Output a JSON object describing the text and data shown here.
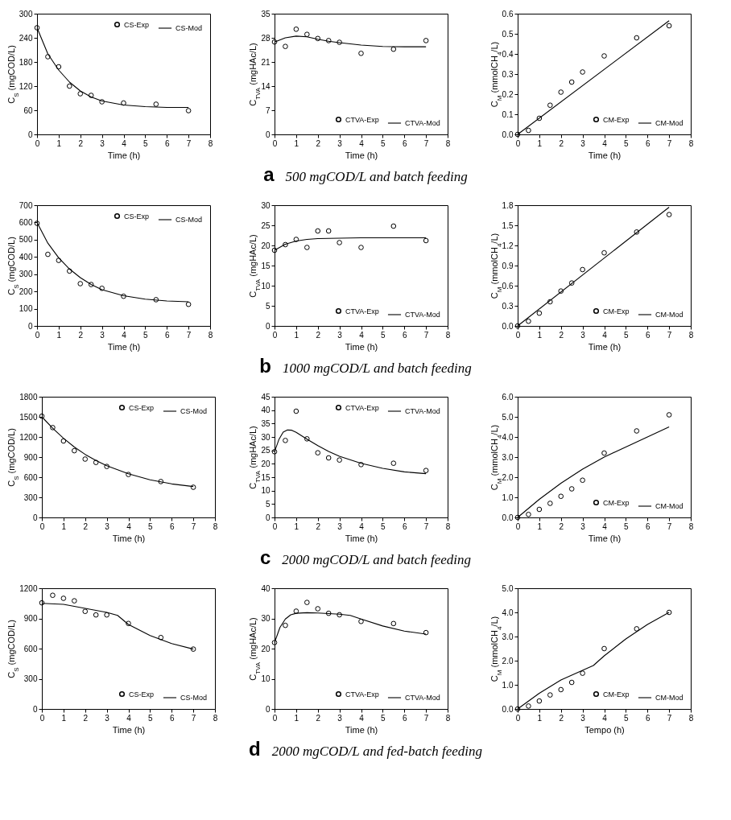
{
  "chart_data": [
    {
      "type": "line",
      "xlabel": "Time (h)",
      "ylabel": "C$_{S}$ (mgCOD/L)",
      "xlim": [
        0,
        8
      ],
      "xticks": [
        0,
        1,
        2,
        3,
        4,
        5,
        6,
        7,
        8
      ],
      "ylim": [
        0,
        300
      ],
      "yticks": [
        0,
        60,
        120,
        180,
        240,
        300
      ],
      "legend": "top right",
      "series": [
        {
          "name": "CS-Exp",
          "type": "scatter",
          "marker": "circle",
          "color": "#000000",
          "x": [
            0,
            0.5,
            1,
            1.5,
            2,
            2.5,
            3,
            4,
            5.5,
            7
          ],
          "values": [
            265,
            193,
            168,
            120,
            101,
            97,
            81,
            78,
            75,
            59
          ]
        },
        {
          "name": "CS-Mod",
          "type": "line",
          "line_style": "solid",
          "color": "#000000",
          "x": [
            0,
            0.5,
            1,
            1.5,
            2,
            2.5,
            3,
            4,
            5,
            6,
            7
          ],
          "values": [
            265,
            200,
            160,
            130,
            108,
            93,
            83,
            73,
            69,
            67,
            67
          ]
        }
      ]
    },
    {
      "type": "line",
      "xlabel": "Time (h)",
      "ylabel": "C$_{TVA}$ (mgHAc/L)",
      "xlim": [
        0,
        8
      ],
      "xticks": [
        0,
        1,
        2,
        3,
        4,
        5,
        6,
        7,
        8
      ],
      "ylim": [
        0,
        35
      ],
      "yticks": [
        0,
        7,
        14,
        21,
        28,
        35
      ],
      "legend": "bottom right",
      "annotations": [
        "a",
        "500 mgCOD/L and batch feeding"
      ],
      "series": [
        {
          "name": "CTVA-Exp",
          "type": "scatter",
          "marker": "circle",
          "color": "#000000",
          "x": [
            0,
            0.5,
            1,
            1.5,
            2,
            2.5,
            3,
            4,
            5.5,
            7
          ],
          "values": [
            26.8,
            25.5,
            30.5,
            29,
            27.8,
            27.2,
            26.7,
            23.5,
            24.7,
            27.2
          ]
        },
        {
          "name": "CTVA-Mod",
          "type": "line",
          "line_style": "solid",
          "color": "#000000",
          "x": [
            0,
            0.5,
            1,
            1.5,
            2,
            2.5,
            3,
            4,
            5,
            6,
            7
          ],
          "values": [
            26.8,
            28,
            28.5,
            28.3,
            27.6,
            27,
            26.6,
            25.9,
            25.5,
            25.4,
            25.4
          ]
        }
      ]
    },
    {
      "type": "line",
      "xlabel": "Time (h)",
      "ylabel": "C$_{M}$ (mmolCH$_{4}$/L)",
      "xlim": [
        0,
        8
      ],
      "xticks": [
        0,
        1,
        2,
        3,
        4,
        5,
        6,
        7,
        8
      ],
      "ylim": [
        0,
        0.6
      ],
      "yticks": [
        {
          "value": 0,
          "label": "0.0"
        },
        0.1,
        0.2,
        0.3,
        0.4,
        0.5,
        0.6
      ],
      "legend": "bottom right",
      "series": [
        {
          "name": "CM-Exp",
          "type": "scatter",
          "marker": "circle",
          "color": "#000000",
          "x": [
            0,
            0.5,
            1,
            1.5,
            2,
            2.5,
            3,
            4,
            5.5,
            7
          ],
          "values": [
            0,
            0.02,
            0.08,
            0.145,
            0.21,
            0.26,
            0.31,
            0.39,
            0.48,
            0.54
          ]
        },
        {
          "name": "CM-Mod",
          "type": "line",
          "line_style": "solid",
          "color": "#000000",
          "x": [
            0,
            7
          ],
          "values": [
            0,
            0.565
          ]
        }
      ]
    },
    {
      "type": "line",
      "xlabel": "Time (h)",
      "ylabel": "C$_{S}$ (mgCOD/L)",
      "xlim": [
        0,
        8
      ],
      "xticks": [
        0,
        1,
        2,
        3,
        4,
        5,
        6,
        7,
        8
      ],
      "ylim": [
        0,
        700
      ],
      "yticks": [
        0,
        100,
        200,
        300,
        400,
        500,
        600,
        700
      ],
      "legend": "top right",
      "series": [
        {
          "name": "CS-Exp",
          "type": "scatter",
          "marker": "circle",
          "color": "#000000",
          "x": [
            0,
            0.5,
            1,
            1.5,
            2,
            2.5,
            3,
            4,
            5.5,
            7
          ],
          "values": [
            595,
            415,
            380,
            318,
            245,
            240,
            218,
            172,
            152,
            125
          ]
        },
        {
          "name": "CS-Mod",
          "type": "line",
          "line_style": "solid",
          "color": "#000000",
          "x": [
            0,
            0.5,
            1,
            1.5,
            2,
            2.5,
            3,
            4,
            5,
            6,
            7
          ],
          "values": [
            600,
            480,
            395,
            330,
            280,
            240,
            210,
            175,
            155,
            145,
            140
          ]
        }
      ]
    },
    {
      "type": "line",
      "xlabel": "Time (h)",
      "ylabel": "C$_{TVA}$ (mgHAc/L)",
      "xlim": [
        0,
        8
      ],
      "xticks": [
        0,
        1,
        2,
        3,
        4,
        5,
        6,
        7,
        8
      ],
      "ylim": [
        0,
        30
      ],
      "yticks": [
        0,
        5,
        10,
        15,
        20,
        25,
        30
      ],
      "legend": "bottom right",
      "annotations": [
        "b",
        "1000 mgCOD/L and batch feeding"
      ],
      "series": [
        {
          "name": "CTVA-Exp",
          "type": "scatter",
          "marker": "circle",
          "color": "#000000",
          "x": [
            0,
            0.5,
            1,
            1.5,
            2,
            2.5,
            3,
            4,
            5.5,
            7
          ],
          "values": [
            18.8,
            20.2,
            21.5,
            19.5,
            23.6,
            23.6,
            20.7,
            19.5,
            24.8,
            21.2
          ]
        },
        {
          "name": "CTVA-Mod",
          "type": "line",
          "line_style": "solid",
          "color": "#000000",
          "x": [
            0,
            0.5,
            1,
            1.5,
            2,
            3,
            4,
            7
          ],
          "values": [
            18.8,
            20.3,
            21.1,
            21.5,
            21.7,
            21.8,
            21.9,
            21.9
          ]
        }
      ]
    },
    {
      "type": "line",
      "xlabel": "Time (h)",
      "ylabel": "C$_{M}$ (mmolCH$_{4}$/L)",
      "xlim": [
        0,
        8
      ],
      "xticks": [
        0,
        1,
        2,
        3,
        4,
        5,
        6,
        7,
        8
      ],
      "ylim": [
        0,
        1.8
      ],
      "yticks": [
        {
          "value": 0,
          "label": "0.0"
        },
        0.3,
        0.6,
        0.9,
        1.2,
        1.5,
        1.8
      ],
      "legend": "bottom right",
      "series": [
        {
          "name": "CM-Exp",
          "type": "scatter",
          "marker": "circle",
          "color": "#000000",
          "x": [
            0,
            0.5,
            1,
            1.5,
            2,
            2.5,
            3,
            4,
            5.5,
            7
          ],
          "values": [
            0,
            0.07,
            0.19,
            0.36,
            0.52,
            0.64,
            0.84,
            1.09,
            1.4,
            1.66
          ]
        },
        {
          "name": "CM-Mod",
          "type": "line",
          "line_style": "solid",
          "color": "#000000",
          "x": [
            0,
            7
          ],
          "values": [
            0,
            1.77
          ]
        }
      ]
    },
    {
      "type": "line",
      "xlabel": "Time (h)",
      "ylabel": "C$_{S}$ (mgCOD/L)",
      "xlim": [
        0,
        8
      ],
      "xticks": [
        0,
        1,
        2,
        3,
        4,
        5,
        6,
        7,
        8
      ],
      "ylim": [
        0,
        1800
      ],
      "yticks": [
        0,
        300,
        600,
        900,
        1200,
        1500,
        1800
      ],
      "legend": "top right",
      "series": [
        {
          "name": "CS-Exp",
          "type": "scatter",
          "marker": "circle",
          "color": "#000000",
          "x": [
            0,
            0.5,
            1,
            1.5,
            2,
            2.5,
            3,
            4,
            5.5,
            7
          ],
          "values": [
            1510,
            1340,
            1140,
            995,
            870,
            820,
            760,
            640,
            535,
            450
          ]
        },
        {
          "name": "CS-Mod",
          "type": "line",
          "line_style": "solid",
          "color": "#000000",
          "x": [
            0,
            0.5,
            1,
            1.5,
            2,
            2.5,
            3,
            4,
            5,
            6,
            7
          ],
          "values": [
            1500,
            1330,
            1180,
            1050,
            940,
            850,
            770,
            650,
            560,
            500,
            460
          ]
        }
      ]
    },
    {
      "type": "line",
      "xlabel": "Time (h)",
      "ylabel": "C$_{TVA}$ (mgHAc/L)",
      "xlim": [
        0,
        8
      ],
      "xticks": [
        0,
        1,
        2,
        3,
        4,
        5,
        6,
        7,
        8
      ],
      "ylim": [
        0,
        45
      ],
      "yticks": [
        0,
        5,
        10,
        15,
        20,
        25,
        30,
        35,
        40,
        45
      ],
      "legend": "top right",
      "annotations": [
        "c",
        "2000 mgCOD/L and batch feeding"
      ],
      "series": [
        {
          "name": "CTVA-Exp",
          "type": "scatter",
          "marker": "circle",
          "color": "#000000",
          "x": [
            0,
            0.5,
            1,
            1.5,
            2,
            2.5,
            3,
            4,
            5.5,
            7
          ],
          "values": [
            24.5,
            28.7,
            39.6,
            29.3,
            24.1,
            22.2,
            21.4,
            19.7,
            20.2,
            17.5
          ]
        },
        {
          "name": "CTVA-Mod",
          "type": "line",
          "line_style": "solid",
          "color": "#000000",
          "x": [
            0,
            0.2,
            0.4,
            0.6,
            0.8,
            1,
            1.5,
            2,
            2.5,
            3,
            4,
            5,
            6,
            7
          ],
          "values": [
            24.5,
            29,
            31.8,
            32.6,
            32.5,
            31.7,
            29.2,
            26.8,
            24.6,
            22.8,
            20.2,
            18.3,
            17,
            16.3
          ]
        }
      ]
    },
    {
      "type": "line",
      "xlabel": "Time (h)",
      "ylabel": "C$_{M}$ (mmolCH$_{4}$/L)",
      "xlim": [
        0,
        8
      ],
      "xticks": [
        0,
        1,
        2,
        3,
        4,
        5,
        6,
        7,
        8
      ],
      "ylim": [
        0,
        6
      ],
      "yticks": [
        {
          "value": 0,
          "label": "0.0"
        },
        {
          "value": 1,
          "label": "1.0"
        },
        {
          "value": 2,
          "label": "2.0"
        },
        {
          "value": 3,
          "label": "3.0"
        },
        {
          "value": 4,
          "label": "4.0"
        },
        {
          "value": 5,
          "label": "5.0"
        },
        {
          "value": 6,
          "label": "6.0"
        }
      ],
      "legend": "bottom right",
      "series": [
        {
          "name": "CM-Exp",
          "type": "scatter",
          "marker": "circle",
          "color": "#000000",
          "x": [
            0,
            0.5,
            1,
            1.5,
            2,
            2.5,
            3,
            4,
            5.5,
            7
          ],
          "values": [
            0,
            0.15,
            0.4,
            0.7,
            1.05,
            1.42,
            1.85,
            3.2,
            4.3,
            5.1
          ]
        },
        {
          "name": "CM-Mod",
          "type": "line",
          "line_style": "solid",
          "color": "#000000",
          "x": [
            0,
            1,
            2,
            3,
            4,
            5,
            6,
            7
          ],
          "values": [
            0,
            0.9,
            1.7,
            2.4,
            3.0,
            3.5,
            4.0,
            4.5
          ]
        }
      ]
    },
    {
      "type": "line",
      "xlabel": "Time (h)",
      "ylabel": "C$_{S}$ (mgCOD/L)",
      "xlim": [
        0,
        8
      ],
      "xticks": [
        0,
        1,
        2,
        3,
        4,
        5,
        6,
        7,
        8
      ],
      "ylim": [
        0,
        1200
      ],
      "yticks": [
        0,
        300,
        600,
        900,
        1200
      ],
      "legend": "bottom right",
      "series": [
        {
          "name": "CS-Exp",
          "type": "scatter",
          "marker": "circle",
          "color": "#000000",
          "x": [
            0,
            0.5,
            1,
            1.5,
            2,
            2.5,
            3,
            4,
            5.5,
            7
          ],
          "values": [
            1055,
            1130,
            1100,
            1075,
            970,
            935,
            935,
            850,
            710,
            595
          ]
        },
        {
          "name": "CS-Mod",
          "type": "line",
          "line_style": "solid",
          "color": "#000000",
          "x": [
            0,
            1,
            2,
            3,
            3.5,
            4,
            5,
            6,
            7
          ],
          "values": [
            1050,
            1040,
            1000,
            960,
            930,
            840,
            730,
            650,
            595
          ]
        }
      ]
    },
    {
      "type": "line",
      "xlabel": "Time (h)",
      "ylabel": "C$_{TVA}$ (mgHAc/L)",
      "xlim": [
        0,
        8
      ],
      "xticks": [
        0,
        1,
        2,
        3,
        4,
        5,
        6,
        7,
        8
      ],
      "ylim": [
        0,
        40
      ],
      "yticks": [
        0,
        10,
        20,
        30,
        40
      ],
      "legend": "bottom right",
      "annotations": [
        "d",
        "2000 mgCOD/L and fed-batch feeding"
      ],
      "series": [
        {
          "name": "CTVA-Exp",
          "type": "scatter",
          "marker": "circle",
          "color": "#000000",
          "x": [
            0,
            0.5,
            1,
            1.5,
            2,
            2.5,
            3,
            4,
            5.5,
            7
          ],
          "values": [
            22,
            27.7,
            32.4,
            35.3,
            33.2,
            31.7,
            31.2,
            29,
            28.3,
            25.3
          ]
        },
        {
          "name": "CTVA-Mod",
          "type": "line",
          "line_style": "solid",
          "color": "#000000",
          "x": [
            0,
            0.25,
            0.5,
            0.75,
            1,
            1.5,
            2,
            3,
            3.5,
            4,
            5,
            6,
            7
          ],
          "values": [
            22,
            27,
            29.8,
            31.2,
            31.7,
            31.9,
            31.8,
            31.4,
            31,
            29.8,
            27.5,
            25.8,
            24.8
          ]
        }
      ]
    },
    {
      "type": "line",
      "xlabel": "Tempo (h)",
      "ylabel": "C$_{M}$ (mmolCH$_{4}$/L)",
      "xlim": [
        0,
        8
      ],
      "xticks": [
        0,
        1,
        2,
        3,
        4,
        5,
        6,
        7,
        8
      ],
      "ylim": [
        0,
        5
      ],
      "yticks": [
        {
          "value": 0,
          "label": "0.0"
        },
        {
          "value": 1,
          "label": "1.0"
        },
        {
          "value": 2,
          "label": "2.0"
        },
        {
          "value": 3,
          "label": "3.0"
        },
        {
          "value": 4,
          "label": "4.0"
        },
        {
          "value": 5,
          "label": "5.0"
        }
      ],
      "legend": "bottom right",
      "series": [
        {
          "name": "CM-Exp",
          "type": "scatter",
          "marker": "circle",
          "color": "#000000",
          "x": [
            0,
            0.5,
            1,
            1.5,
            2,
            2.5,
            3,
            4,
            5.5,
            7
          ],
          "values": [
            0,
            0.12,
            0.33,
            0.58,
            0.8,
            1.1,
            1.48,
            2.5,
            3.32,
            4.0
          ]
        },
        {
          "name": "CM-Mod",
          "type": "line",
          "line_style": "solid",
          "color": "#000000",
          "x": [
            0,
            1,
            2,
            3,
            3.5,
            4,
            5,
            6,
            7
          ],
          "values": [
            0,
            0.65,
            1.2,
            1.6,
            1.8,
            2.2,
            2.9,
            3.5,
            4.0
          ]
        }
      ]
    }
  ]
}
